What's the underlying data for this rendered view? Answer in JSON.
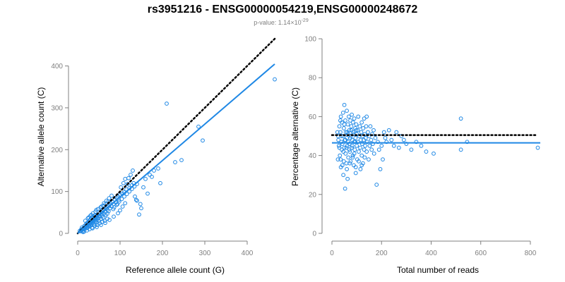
{
  "header": {
    "title": "rs3951216 - ENSG00000054219,ENSG00000248672",
    "subtitle_prefix": "p-value: 1.14×10",
    "subtitle_exponent": "-29"
  },
  "colors": {
    "points": "#1f88e5",
    "fit_line": "#1f88e5",
    "reference_line": "#000000"
  },
  "chart_data": [
    {
      "type": "scatter",
      "xlabel": "Reference allele count (G)",
      "ylabel": "Alternative allele count (C)",
      "xlim": [
        0,
        470
      ],
      "ylim": [
        0,
        470
      ],
      "xticks": [
        0,
        100,
        200,
        300,
        400
      ],
      "yticks": [
        0,
        100,
        200,
        300,
        400
      ],
      "grid": false,
      "reference_line": {
        "style": "dotted",
        "slope": 1.0,
        "intercept": 0,
        "x_range": [
          0,
          465
        ]
      },
      "fit_line": {
        "style": "solid",
        "slope": 0.87,
        "intercept": 0,
        "x_range": [
          0,
          465
        ]
      },
      "points": [
        [
          5,
          6
        ],
        [
          7,
          5
        ],
        [
          8,
          9
        ],
        [
          10,
          8
        ],
        [
          12,
          11
        ],
        [
          12,
          6
        ],
        [
          14,
          13
        ],
        [
          15,
          10
        ],
        [
          16,
          18
        ],
        [
          17,
          12
        ],
        [
          18,
          15
        ],
        [
          19,
          20
        ],
        [
          20,
          17
        ],
        [
          20,
          12
        ],
        [
          21,
          24
        ],
        [
          22,
          19
        ],
        [
          23,
          14
        ],
        [
          24,
          22
        ],
        [
          25,
          27
        ],
        [
          25,
          18
        ],
        [
          26,
          20
        ],
        [
          27,
          25
        ],
        [
          28,
          30
        ],
        [
          28,
          16
        ],
        [
          29,
          23
        ],
        [
          30,
          27
        ],
        [
          30,
          33
        ],
        [
          31,
          21
        ],
        [
          32,
          26
        ],
        [
          33,
          30
        ],
        [
          33,
          36
        ],
        [
          34,
          24
        ],
        [
          35,
          29
        ],
        [
          35,
          40
        ],
        [
          36,
          32
        ],
        [
          37,
          27
        ],
        [
          38,
          35
        ],
        [
          38,
          22
        ],
        [
          39,
          31
        ],
        [
          40,
          38
        ],
        [
          40,
          43
        ],
        [
          41,
          34
        ],
        [
          42,
          29
        ],
        [
          43,
          37
        ],
        [
          44,
          41
        ],
        [
          45,
          32
        ],
        [
          45,
          26
        ],
        [
          46,
          39
        ],
        [
          47,
          44
        ],
        [
          48,
          36
        ],
        [
          50,
          42
        ],
        [
          50,
          30
        ],
        [
          52,
          48
        ],
        [
          53,
          40
        ],
        [
          55,
          45
        ],
        [
          55,
          34
        ],
        [
          57,
          50
        ],
        [
          58,
          42
        ],
        [
          60,
          55
        ],
        [
          60,
          38
        ],
        [
          62,
          47
        ],
        [
          63,
          58
        ],
        [
          65,
          52
        ],
        [
          66,
          44
        ],
        [
          68,
          60
        ],
        [
          70,
          56
        ],
        [
          70,
          47
        ],
        [
          72,
          64
        ],
        [
          73,
          53
        ],
        [
          75,
          68
        ],
        [
          76,
          60
        ],
        [
          78,
          72
        ],
        [
          80,
          65
        ],
        [
          82,
          75
        ],
        [
          84,
          58
        ],
        [
          85,
          70
        ],
        [
          88,
          80
        ],
        [
          90,
          74
        ],
        [
          92,
          85
        ],
        [
          94,
          70
        ],
        [
          95,
          88
        ],
        [
          97,
          80
        ],
        [
          100,
          92
        ],
        [
          102,
          110
        ],
        [
          105,
          95
        ],
        [
          108,
          120
        ],
        [
          110,
          98
        ],
        [
          112,
          130
        ],
        [
          115,
          105
        ],
        [
          118,
          118
        ],
        [
          120,
          132
        ],
        [
          122,
          108
        ],
        [
          125,
          140
        ],
        [
          128,
          115
        ],
        [
          130,
          150
        ],
        [
          132,
          120
        ],
        [
          135,
          88
        ],
        [
          138,
          80
        ],
        [
          140,
          78
        ],
        [
          145,
          45
        ],
        [
          148,
          70
        ],
        [
          150,
          60
        ],
        [
          155,
          110
        ],
        [
          160,
          130
        ],
        [
          165,
          95
        ],
        [
          170,
          140
        ],
        [
          175,
          135
        ],
        [
          180,
          150
        ],
        [
          190,
          155
        ],
        [
          195,
          120
        ],
        [
          210,
          310
        ],
        [
          230,
          170
        ],
        [
          245,
          175
        ],
        [
          285,
          255
        ],
        [
          295,
          222
        ],
        [
          465,
          368
        ],
        [
          15,
          4
        ],
        [
          22,
          7
        ],
        [
          28,
          10
        ],
        [
          34,
          14
        ],
        [
          40,
          18
        ],
        [
          46,
          20
        ],
        [
          52,
          24
        ],
        [
          58,
          28
        ],
        [
          64,
          30
        ],
        [
          70,
          35
        ],
        [
          18,
          30
        ],
        [
          24,
          36
        ],
        [
          30,
          42
        ],
        [
          36,
          48
        ],
        [
          42,
          52
        ],
        [
          48,
          58
        ],
        [
          54,
          62
        ],
        [
          60,
          66
        ],
        [
          66,
          70
        ],
        [
          72,
          76
        ],
        [
          10,
          14
        ],
        [
          13,
          3
        ],
        [
          26,
          38
        ],
        [
          32,
          44
        ],
        [
          44,
          56
        ],
        [
          56,
          64
        ],
        [
          62,
          72
        ],
        [
          68,
          78
        ],
        [
          74,
          84
        ],
        [
          80,
          90
        ],
        [
          86,
          62
        ],
        [
          92,
          68
        ],
        [
          98,
          76
        ],
        [
          104,
          82
        ],
        [
          110,
          88
        ],
        [
          116,
          94
        ],
        [
          122,
          100
        ],
        [
          128,
          106
        ],
        [
          134,
          112
        ],
        [
          140,
          118
        ],
        [
          35,
          12
        ],
        [
          45,
          15
        ],
        [
          55,
          20
        ],
        [
          65,
          25
        ],
        [
          75,
          32
        ],
        [
          85,
          40
        ],
        [
          95,
          48
        ],
        [
          100,
          55
        ],
        [
          106,
          64
        ],
        [
          112,
          72
        ]
      ]
    },
    {
      "type": "scatter",
      "xlabel": "Total number of reads",
      "ylabel": "Percentage alternative (C)",
      "xlim": [
        0,
        840
      ],
      "ylim": [
        0,
        100
      ],
      "xticks": [
        0,
        200,
        400,
        600,
        800
      ],
      "yticks": [
        0,
        20,
        40,
        60,
        80,
        100
      ],
      "grid": false,
      "reference_line": {
        "style": "dotted",
        "y": 50.5,
        "x_range": [
          0,
          830
        ]
      },
      "fit_line": {
        "style": "solid",
        "y": 46.5,
        "x_range": [
          0,
          840
        ]
      },
      "points": [
        [
          25,
          50
        ],
        [
          28,
          45
        ],
        [
          30,
          55
        ],
        [
          32,
          40
        ],
        [
          34,
          52
        ],
        [
          35,
          38
        ],
        [
          36,
          60
        ],
        [
          38,
          47
        ],
        [
          40,
          43
        ],
        [
          40,
          57
        ],
        [
          42,
          35
        ],
        [
          44,
          50
        ],
        [
          45,
          62
        ],
        [
          46,
          30
        ],
        [
          48,
          54
        ],
        [
          50,
          44
        ],
        [
          50,
          66
        ],
        [
          52,
          48
        ],
        [
          53,
          23
        ],
        [
          54,
          58
        ],
        [
          55,
          41
        ],
        [
          56,
          52
        ],
        [
          58,
          36
        ],
        [
          60,
          63
        ],
        [
          60,
          49
        ],
        [
          62,
          45
        ],
        [
          63,
          28
        ],
        [
          64,
          56
        ],
        [
          65,
          51
        ],
        [
          66,
          39
        ],
        [
          68,
          60
        ],
        [
          70,
          46
        ],
        [
          70,
          53
        ],
        [
          72,
          42
        ],
        [
          74,
          58
        ],
        [
          75,
          37
        ],
        [
          76,
          50
        ],
        [
          78,
          55
        ],
        [
          80,
          44
        ],
        [
          80,
          61
        ],
        [
          82,
          48
        ],
        [
          84,
          40
        ],
        [
          85,
          57
        ],
        [
          86,
          52
        ],
        [
          88,
          35
        ],
        [
          90,
          47
        ],
        [
          90,
          59
        ],
        [
          92,
          43
        ],
        [
          94,
          54
        ],
        [
          95,
          49
        ],
        [
          96,
          31
        ],
        [
          98,
          56
        ],
        [
          100,
          45
        ],
        [
          100,
          51
        ],
        [
          102,
          38
        ],
        [
          104,
          53
        ],
        [
          105,
          47
        ],
        [
          106,
          60
        ],
        [
          108,
          42
        ],
        [
          110,
          50
        ],
        [
          112,
          55
        ],
        [
          114,
          44
        ],
        [
          115,
          33
        ],
        [
          116,
          48
        ],
        [
          118,
          52
        ],
        [
          120,
          40
        ],
        [
          120,
          57
        ],
        [
          122,
          46
        ],
        [
          124,
          50
        ],
        [
          125,
          36
        ],
        [
          126,
          54
        ],
        [
          128,
          48
        ],
        [
          130,
          43
        ],
        [
          130,
          59
        ],
        [
          132,
          51
        ],
        [
          134,
          45
        ],
        [
          136,
          49
        ],
        [
          138,
          55
        ],
        [
          140,
          42
        ],
        [
          140,
          60
        ],
        [
          142,
          47
        ],
        [
          145,
          52
        ],
        [
          148,
          38
        ],
        [
          150,
          50
        ],
        [
          152,
          45
        ],
        [
          155,
          55
        ],
        [
          158,
          48
        ],
        [
          160,
          43
        ],
        [
          162,
          51
        ],
        [
          165,
          46
        ],
        [
          168,
          53
        ],
        [
          170,
          41
        ],
        [
          175,
          49
        ],
        [
          180,
          25
        ],
        [
          185,
          47
        ],
        [
          190,
          43
        ],
        [
          195,
          33
        ],
        [
          200,
          45
        ],
        [
          205,
          38
        ],
        [
          210,
          52
        ],
        [
          215,
          49
        ],
        [
          220,
          47
        ],
        [
          230,
          53
        ],
        [
          240,
          48
        ],
        [
          250,
          45
        ],
        [
          260,
          52
        ],
        [
          270,
          44
        ],
        [
          280,
          50
        ],
        [
          290,
          48
        ],
        [
          300,
          46
        ],
        [
          320,
          43
        ],
        [
          340,
          47
        ],
        [
          360,
          45
        ],
        [
          380,
          42
        ],
        [
          410,
          41
        ],
        [
          520,
          59
        ],
        [
          520,
          43
        ],
        [
          545,
          47
        ],
        [
          830,
          44
        ],
        [
          22,
          52
        ],
        [
          26,
          48
        ],
        [
          30,
          44
        ],
        [
          34,
          58
        ],
        [
          38,
          50
        ],
        [
          42,
          46
        ],
        [
          46,
          42
        ],
        [
          50,
          56
        ],
        [
          54,
          48
        ],
        [
          58,
          44
        ],
        [
          62,
          52
        ],
        [
          66,
          47
        ],
        [
          70,
          43
        ],
        [
          74,
          49
        ],
        [
          78,
          53
        ],
        [
          82,
          45
        ],
        [
          86,
          51
        ],
        [
          90,
          41
        ],
        [
          94,
          47
        ],
        [
          98,
          53
        ],
        [
          24,
          38
        ],
        [
          36,
          34
        ],
        [
          48,
          37
        ],
        [
          60,
          33
        ],
        [
          72,
          36
        ],
        [
          84,
          39
        ],
        [
          96,
          34
        ],
        [
          108,
          37
        ],
        [
          120,
          35
        ],
        [
          132,
          39
        ]
      ]
    }
  ]
}
